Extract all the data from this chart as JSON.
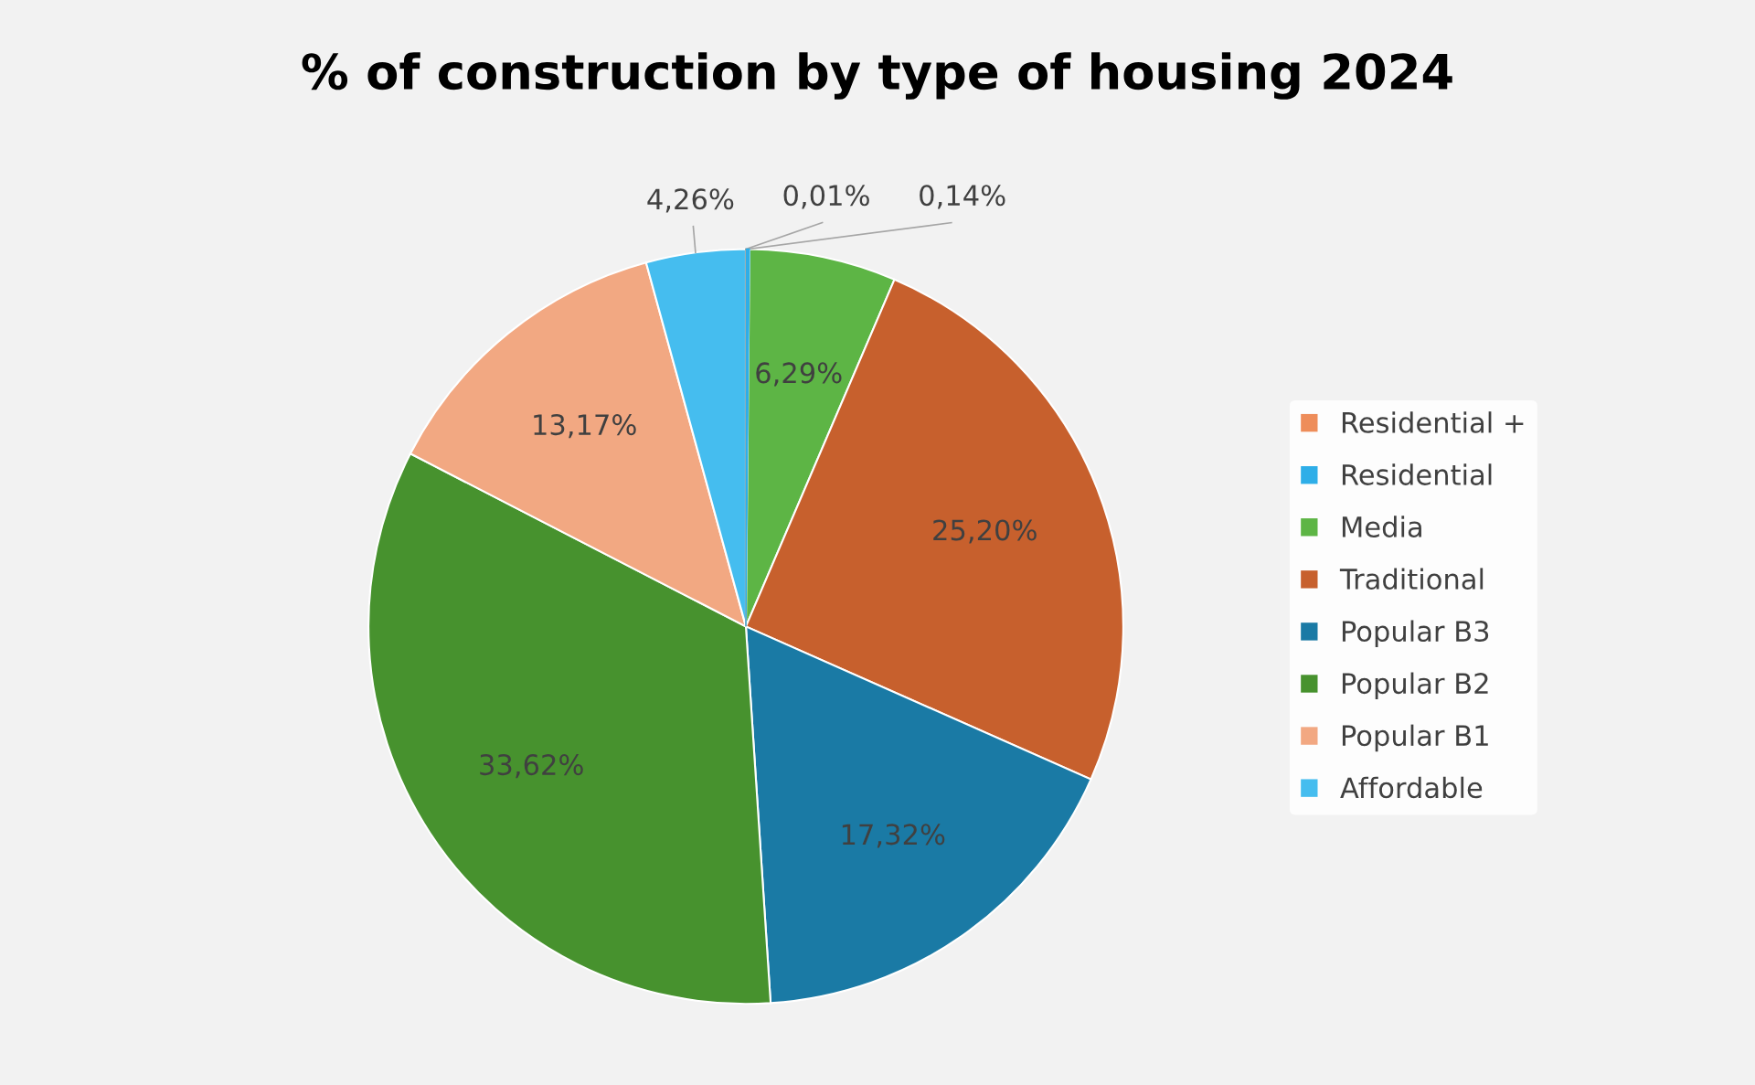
{
  "chart_data": {
    "type": "pie",
    "title": "% of construction by type of housing 2024",
    "categories": [
      "Residential +",
      "Residential",
      "Media",
      "Traditional",
      "Popular B3",
      "Popular B2",
      "Popular B1",
      "Affordable"
    ],
    "values": [
      0.01,
      0.14,
      6.29,
      25.2,
      17.32,
      33.62,
      13.17,
      4.26
    ],
    "value_labels": [
      "0,01%",
      "0,14%",
      "6,29%",
      "25,20%",
      "17,32%",
      "33,62%",
      "13,17%",
      "4,26%"
    ],
    "colors": [
      "#ee8d5a",
      "#2eaee8",
      "#5db545",
      "#c7602d",
      "#1a7aa5",
      "#47922e",
      "#f2a882",
      "#45bdef"
    ],
    "legend": "right"
  }
}
